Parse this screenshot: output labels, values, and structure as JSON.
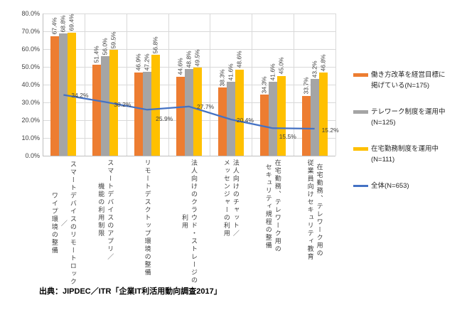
{
  "chart_data": {
    "type": "bar+line",
    "title": "",
    "xlabel": "",
    "ylabel": "",
    "categories": [
      "スマートデバイスのリモートロック／\nワイプ環境の整備",
      "スマートデバイスのアプリ／\n機能の利用制限",
      "リモートデスクトップ環境の整備",
      "法人向けのクラウド・ストレージの\n利用",
      "法人向けのチャット／\nメッセンジャーの利用",
      "在宅勤務、テレワーク用の\nセキュリティ規程の整備",
      "在宅勤務、テレワーク用の\n従業員向けセキュリティ教育"
    ],
    "bar_series": [
      {
        "name": "働き方改革を経営目標に掲げている(N=175)",
        "color": "#ED7D31",
        "values": [
          67.4,
          51.4,
          46.9,
          44.6,
          38.3,
          34.3,
          33.7
        ]
      },
      {
        "name": "テレワーク制度を運用中(N=125)",
        "color": "#A5A5A5",
        "values": [
          68.8,
          56.0,
          47.2,
          48.8,
          41.6,
          41.6,
          43.2
        ]
      },
      {
        "name": "在宅勤務制度を運用中(N=111)",
        "color": "#FFC000",
        "values": [
          69.4,
          59.5,
          56.8,
          49.5,
          48.6,
          45.0,
          46.8
        ]
      }
    ],
    "line_series": {
      "name": "全体(N=653)",
      "color": "#4472C4",
      "values": [
        34.2,
        30.2,
        25.9,
        27.7,
        20.4,
        15.5,
        15.2
      ]
    },
    "ylim": [
      0,
      80
    ],
    "ytick_labels": [
      "0.0%",
      "10.0%",
      "20.0%",
      "30.0%",
      "40.0%",
      "50.0%",
      "60.0%",
      "70.0%",
      "80.0%"
    ],
    "grid": true,
    "legend_position": "right",
    "value_label_format": "0.0%"
  },
  "legend": {
    "items": [
      {
        "label": "働き方改革を経営目標に\n掲げている(N=175)",
        "color": "#ED7D31",
        "marker": "rect"
      },
      {
        "label": "テレワーク制度を運用中\n(N=125)",
        "color": "#A5A5A5",
        "marker": "rect"
      },
      {
        "label": "在宅勤務制度を運用中\n(N=111)",
        "color": "#FFC000",
        "marker": "rect"
      },
      {
        "label": "全体(N=653)",
        "color": "#4472C4",
        "marker": "line"
      }
    ]
  },
  "source": "出典：JIPDEC／ITR「企業IT利活用動向調査2017」",
  "colors": {
    "background": "#FFFFFF",
    "gridline": "#D9D9D9",
    "axis": "#BFBFBF",
    "label_text": "#404040"
  }
}
